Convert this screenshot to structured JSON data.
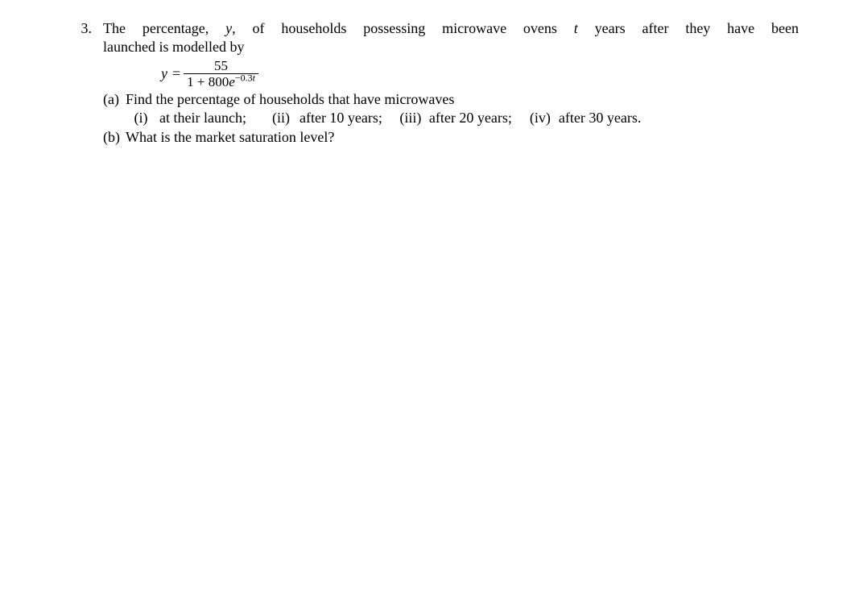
{
  "problem": {
    "number": "3.",
    "intro_line1_pre": "The percentage, ",
    "intro_y": "y",
    "intro_line1_mid": ", of households possessing microwave ovens ",
    "intro_t": "t",
    "intro_line1_post": " years after they have been",
    "intro_line2": "launched is modelled by",
    "equation": {
      "lhs_y": "y",
      "equals": "=",
      "numerator": "55",
      "den_pre": "1 + 800",
      "den_e": "e",
      "exp_pre": "−0.3",
      "exp_t": "t"
    },
    "parts": {
      "a": {
        "label": "(a)",
        "text": "Find the percentage of households that have microwaves",
        "subparts": {
          "i": {
            "label": "(i)",
            "text": "at their launch;"
          },
          "ii": {
            "label": "(ii)",
            "text": "after 10 years;"
          },
          "iii": {
            "label": "(iii)",
            "text": "after 20 years;"
          },
          "iv": {
            "label": "(iv)",
            "text": "after 30 years."
          }
        }
      },
      "b": {
        "label": "(b)",
        "text": "What is the market saturation level?"
      }
    }
  }
}
